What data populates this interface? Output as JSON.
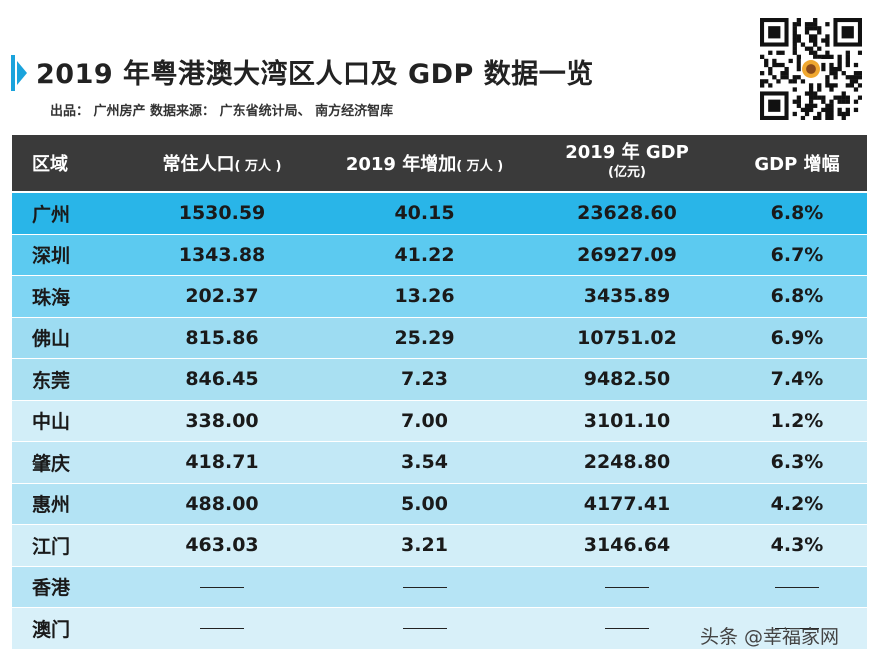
{
  "title": "2019 年粤港澳大湾区人口及 GDP 数据一览",
  "subtitle": "出品： 广州房产  数据来源： 广东省统计局、 南方经济智库",
  "watermark": "头条 @幸福家网",
  "table": {
    "headers": {
      "c0": "区域",
      "c1_main": "常住人口",
      "c1_unit": "( 万人 )",
      "c2_main": "2019 年增加",
      "c2_unit": "( 万人 )",
      "c3_main": "2019 年 GDP",
      "c3_unit": "(亿元)",
      "c4": "GDP 增幅"
    },
    "rows": [
      {
        "region": "广州",
        "pop": "1530.59",
        "inc": "40.15",
        "gdp": "23628.60",
        "growth": "6.8%",
        "bg": "#29b5e8"
      },
      {
        "region": "深圳",
        "pop": "1343.88",
        "inc": "41.22",
        "gdp": "26927.09",
        "growth": "6.7%",
        "bg": "#5ccaf0"
      },
      {
        "region": "珠海",
        "pop": "202.37",
        "inc": "13.26",
        "gdp": "3435.89",
        "growth": "6.8%",
        "bg": "#7fd5f3"
      },
      {
        "region": "佛山",
        "pop": "815.86",
        "inc": "25.29",
        "gdp": "10751.02",
        "growth": "6.9%",
        "bg": "#9ddcf2"
      },
      {
        "region": "东莞",
        "pop": "846.45",
        "inc": "7.23",
        "gdp": "9482.50",
        "growth": "7.4%",
        "bg": "#a9e0f2"
      },
      {
        "region": "中山",
        "pop": "338.00",
        "inc": "7.00",
        "gdp": "3101.10",
        "growth": "1.2%",
        "bg": "#d2eef8"
      },
      {
        "region": "肇庆",
        "pop": "418.71",
        "inc": "3.54",
        "gdp": "2248.80",
        "growth": "6.3%",
        "bg": "#c2e8f6"
      },
      {
        "region": "惠州",
        "pop": "488.00",
        "inc": "5.00",
        "gdp": "4177.41",
        "growth": "4.2%",
        "bg": "#b3e3f4"
      },
      {
        "region": "江门",
        "pop": "463.03",
        "inc": "3.21",
        "gdp": "3146.64",
        "growth": "4.3%",
        "bg": "#d2eef8"
      },
      {
        "region": "香港",
        "pop": "",
        "inc": "",
        "gdp": "",
        "growth": "",
        "bg": "#b6e4f5"
      },
      {
        "region": "澳门",
        "pop": "",
        "inc": "",
        "gdp": "",
        "growth": "",
        "bg": "#d8f0f9"
      }
    ]
  }
}
